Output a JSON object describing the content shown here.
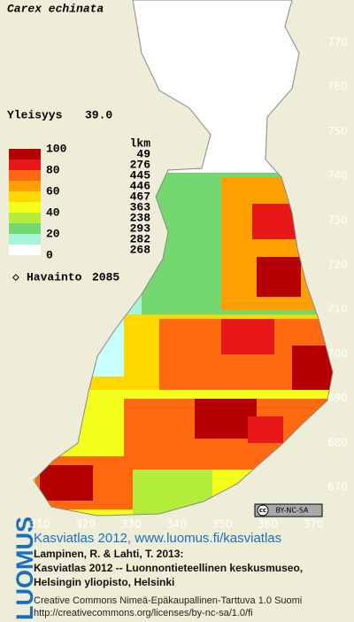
{
  "title": "Carex echinata",
  "frequency": {
    "label": "Yleisyys",
    "value": "39.0"
  },
  "legend": {
    "scale_labels": [
      100,
      80,
      60,
      40,
      20,
      0
    ],
    "count_header": "lkm",
    "counts": [
      49,
      276,
      445,
      446,
      467,
      363,
      238,
      293,
      282,
      268
    ],
    "colors": [
      "#b40000",
      "#e81818",
      "#ff6a10",
      "#ffa000",
      "#ffd800",
      "#f4ff1c",
      "#b4ec3c",
      "#74d870",
      "#a8f4d8",
      "#ffffff"
    ]
  },
  "observations": {
    "label": "Havainto",
    "value": 2085
  },
  "axes": {
    "y_ticks": [
      770,
      760,
      750,
      740,
      730,
      720,
      710,
      700,
      690,
      680,
      670
    ],
    "x_ticks": [
      310,
      320,
      330,
      340,
      350,
      360,
      370
    ]
  },
  "badge": {
    "cc": "cc",
    "text": "BY-NC-SA"
  },
  "logo": "LUOMUS",
  "credits": {
    "heading": "Kasviatlas 2012, www.luomus.fi/kasviatlas",
    "lines": [
      "Lampinen, R. & Lahti, T. 2013:",
      "Kasviatlas 2012 -- Luonnontieteellinen keskusmuseo,",
      "Helsingin yliopisto, Helsinki"
    ],
    "license": [
      "Creative Commons Nimeä-Epäkaupallinen-Tarttuva 1.0 Suomi",
      "http://creativecommons.org/licenses/by-nc-sa/1.0/fi"
    ]
  }
}
